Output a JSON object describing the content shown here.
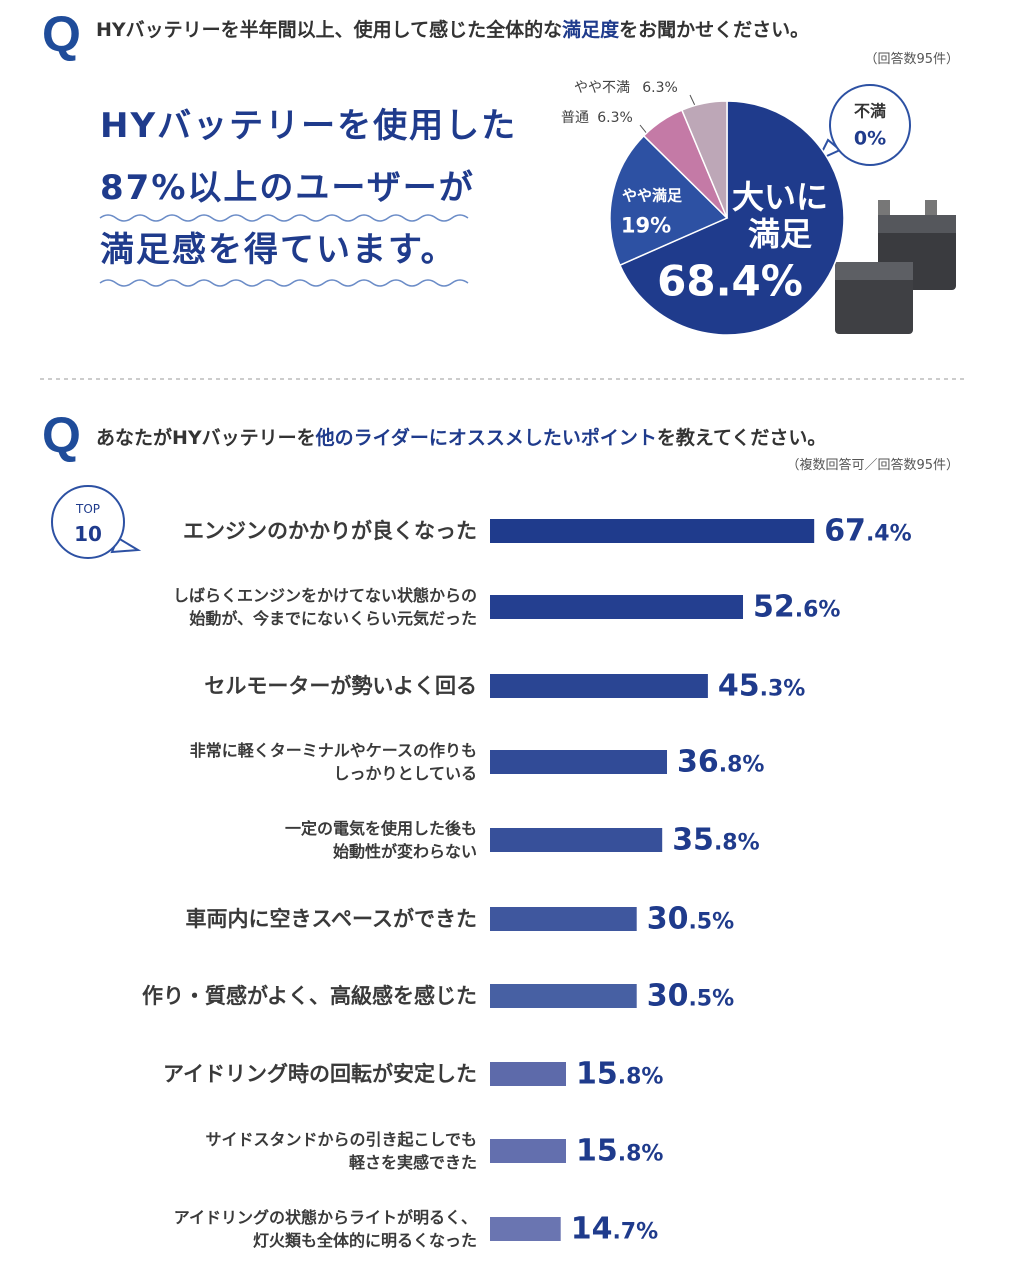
{
  "chart_data": [
    {
      "type": "pie",
      "question_mark": "Q",
      "title": [
        "HYバッテリーを半年間以上、使用して感じた全体的な",
        "満足度",
        "をお聞かせください。"
      ],
      "note": "（回答数95件）",
      "headline": [
        "HYバッテリーを使用した",
        "87%以上のユーザーが",
        "満足感を得ています。"
      ],
      "categories": [
        "大いに\n満足",
        "やや満足",
        "普通",
        "やや不満",
        "不満"
      ],
      "values": [
        68.4,
        19,
        6.3,
        6.3,
        0
      ],
      "value_labels": [
        "68.4%",
        "19%",
        "6.3%",
        "6.3%",
        "0%"
      ],
      "colors": [
        "#1f3b8c",
        "#2d51a3",
        "#c47aa6",
        "#bda7b7",
        "#dddddd"
      ]
    },
    {
      "type": "bar",
      "question_mark": "Q",
      "title": [
        "あなたがHYバッテリーを",
        "他のライダーにオススメしたいポイント",
        "を教えてください。"
      ],
      "note": "（複数回答可／回答数95件）",
      "badge": [
        "TOP",
        "10"
      ],
      "categories": [
        "エンジンのかかりが良くなった",
        "しばらくエンジンをかけてない状態からの\n始動が、今までにないくらい元気だった",
        "セルモーターが勢いよく回る",
        "非常に軽くターミナルやケースの作りも\nしっかりとしている",
        "一定の電気を使用した後も\n始動性が変わらない",
        "車両内に空きスペースができた",
        "作り・質感がよく、高級感を感じた",
        "アイドリング時の回転が安定した",
        "サイドスタンドからの引き起こしでも\n軽さを実感できた",
        "アイドリングの状態からライトが明るく、\n灯火類も全体的に明るくなった"
      ],
      "values": [
        67.4,
        52.6,
        45.3,
        36.8,
        35.8,
        30.5,
        30.5,
        15.8,
        15.8,
        14.7
      ],
      "value_labels": [
        "67.4%",
        "52.6%",
        "45.3%",
        "36.8%",
        "35.8%",
        "30.5%",
        "30.5%",
        "15.8%",
        "15.8%",
        "14.7%"
      ],
      "colors": [
        "#1f3b8c",
        "#243f90",
        "#2a4593",
        "#314b97",
        "#37509a",
        "#3f579e",
        "#4760a3",
        "#5d6aaa",
        "#636fae",
        "#6a75b1"
      ]
    }
  ]
}
